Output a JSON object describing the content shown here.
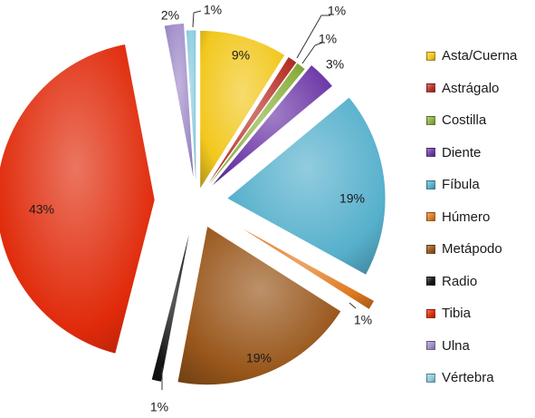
{
  "chart_data": {
    "type": "pie",
    "title": "",
    "exploded": true,
    "legend_position": "right",
    "slices": [
      {
        "label": "Asta/Cuerna",
        "value": 9,
        "display": "9%",
        "color": "#F2C81E"
      },
      {
        "label": "Astrágalo",
        "value": 1,
        "display": "1%",
        "color": "#B83228"
      },
      {
        "label": "Costilla",
        "value": 1,
        "display": "1%",
        "color": "#8CB040"
      },
      {
        "label": "Diente",
        "value": 3,
        "display": "3%",
        "color": "#6E3AA8"
      },
      {
        "label": "Fíbula",
        "value": 19,
        "display": "19%",
        "color": "#56B0CC"
      },
      {
        "label": "Húmero",
        "value": 1,
        "display": "1%",
        "color": "#E07A20"
      },
      {
        "label": "Metápodo",
        "value": 19,
        "display": "19%",
        "color": "#98561A"
      },
      {
        "label": "Radio",
        "value": 1,
        "display": "1%",
        "color": "#151515"
      },
      {
        "label": "Tibia",
        "value": 43,
        "display": "43%",
        "color": "#E02A0A"
      },
      {
        "label": "Ulna",
        "value": 2,
        "display": "2%",
        "color": "#A08CC8"
      },
      {
        "label": "Vértebra",
        "value": 1,
        "display": "1%",
        "color": "#8CCCE0"
      }
    ]
  }
}
